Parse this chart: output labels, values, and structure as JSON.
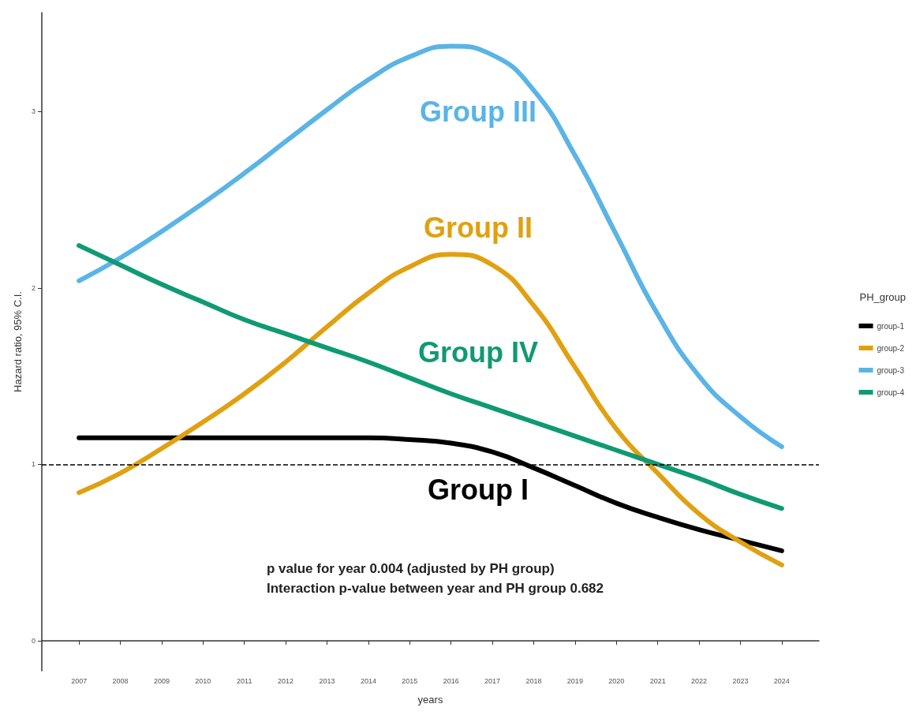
{
  "chart_data": {
    "type": "line",
    "xlabel": "years",
    "ylabel": "Hazard ratio, 95% C.I.",
    "legend_title": "PH_group",
    "legend": "right",
    "grid": false,
    "marker": "none",
    "line_style": "solid",
    "x": [
      2007,
      2008,
      2009,
      2010,
      2011,
      2012,
      2013,
      2014,
      2015,
      2016,
      2017,
      2018,
      2019,
      2020,
      2021,
      2022,
      2023,
      2024
    ],
    "xlim": [
      2006.1,
      2024.9
    ],
    "xticks": [
      2007,
      2008,
      2009,
      2010,
      2011,
      2012,
      2013,
      2014,
      2015,
      2016,
      2017,
      2018,
      2019,
      2020,
      2021,
      2022,
      2023,
      2024
    ],
    "ylim": [
      -0.17,
      3.56
    ],
    "yticks": [
      0,
      1,
      2,
      3
    ],
    "series": [
      {
        "name": "group-1",
        "color": "#000000",
        "values": [
          1.15,
          1.15,
          1.15,
          1.15,
          1.15,
          1.15,
          1.15,
          1.15,
          1.14,
          1.12,
          1.07,
          0.98,
          0.88,
          0.78,
          0.7,
          0.63,
          0.57,
          0.51
        ]
      },
      {
        "name": "group-2",
        "color": "#e0a010",
        "values": [
          0.84,
          0.95,
          1.09,
          1.24,
          1.4,
          1.58,
          1.78,
          1.97,
          2.12,
          2.19,
          2.13,
          1.9,
          1.55,
          1.2,
          0.95,
          0.72,
          0.56,
          0.43
        ]
      },
      {
        "name": "group-3",
        "color": "#5ab4e5",
        "values": [
          2.04,
          2.17,
          2.32,
          2.48,
          2.65,
          2.83,
          3.01,
          3.18,
          3.31,
          3.37,
          3.32,
          3.12,
          2.75,
          2.3,
          1.85,
          1.5,
          1.27,
          1.1
        ]
      },
      {
        "name": "group-4",
        "color": "#0f9a73",
        "values": [
          2.24,
          2.13,
          2.02,
          1.92,
          1.82,
          1.74,
          1.66,
          1.58,
          1.49,
          1.4,
          1.32,
          1.24,
          1.16,
          1.08,
          1.0,
          0.92,
          0.83,
          0.75
        ]
      }
    ],
    "ref_lines": [
      {
        "axis": "y",
        "value": 1,
        "line_style": "dashed",
        "color": "#000000"
      }
    ],
    "annotations": [
      "Group I",
      "Group II",
      "Group III",
      "Group IV",
      "p value for year 0.004 (adjusted by PH group)\nInteraction p-value between year and PH group 0.682"
    ]
  }
}
